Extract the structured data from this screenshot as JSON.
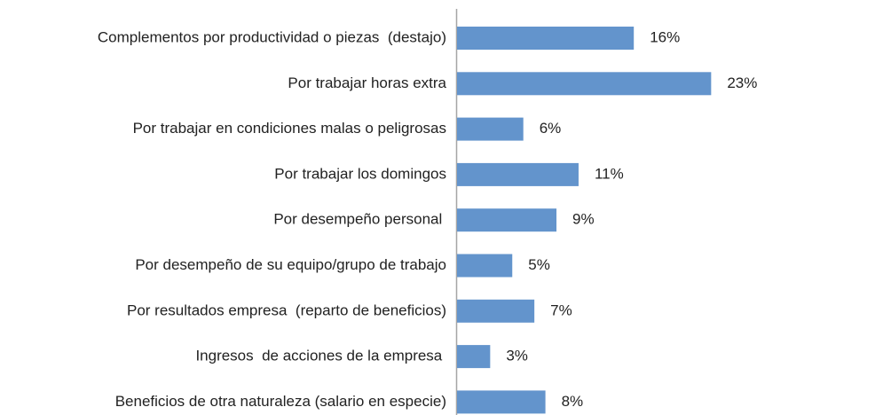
{
  "chart_data": {
    "type": "bar",
    "orientation": "horizontal",
    "categories": [
      "Complementos por productividad o piezas  (destajo)",
      "Por trabajar horas extra",
      "Por trabajar en condiciones malas o peligrosas",
      "Por trabajar los domingos",
      "Por desempeño personal ",
      "Por desempeño de su equipo/grupo de trabajo",
      "Por resultados empresa  (reparto de beneficios)",
      "Ingresos  de acciones de la empresa ",
      "Beneficios de otra naturaleza (salario en especie)"
    ],
    "values": [
      16,
      23,
      6,
      11,
      9,
      5,
      7,
      3,
      8
    ],
    "value_labels": [
      "16%",
      "23%",
      "6%",
      "11%",
      "9%",
      "5%",
      "7%",
      "3%",
      "8%"
    ],
    "color": "#6394cc"
  }
}
